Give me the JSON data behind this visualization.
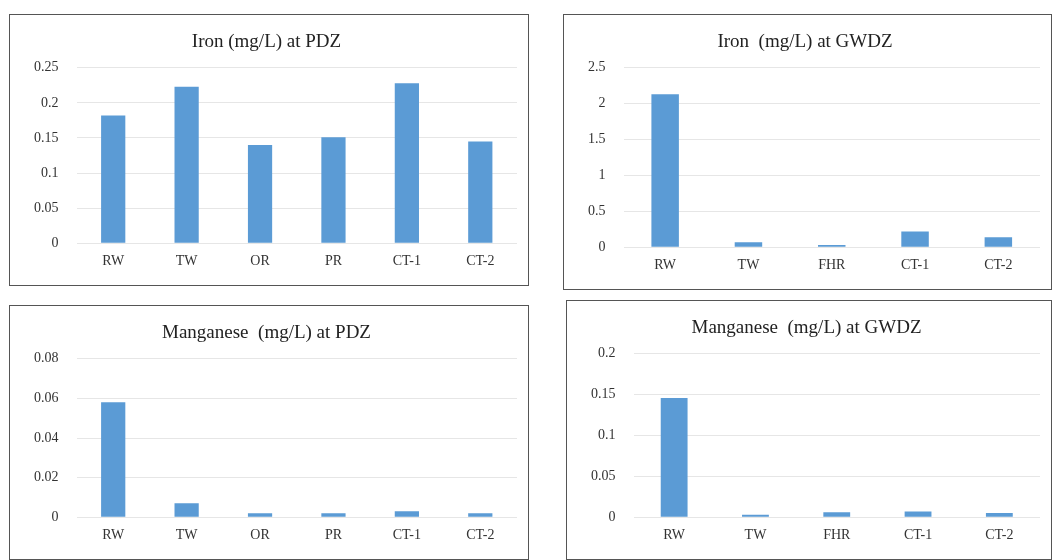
{
  "chart_data": [
    {
      "type": "bar",
      "title": "Iron (mg/L) at PDZ",
      "categories": [
        "RW",
        "TW",
        "OR",
        "PR",
        "CT-1",
        "CT-2"
      ],
      "values": [
        0.182,
        0.223,
        0.14,
        0.151,
        0.228,
        0.145
      ],
      "color": "#5b9bd5",
      "ylim": [
        0,
        0.25
      ],
      "yticks": [
        0,
        {
          "value": 0.05,
          "label": "0.05"
        },
        {
          "value": 0.1,
          "label": "0.1"
        },
        {
          "value": 0.15,
          "label": "0.15"
        },
        {
          "value": 0.2,
          "label": "0.2"
        },
        {
          "value": 0.25,
          "label": "0.25"
        }
      ],
      "grid": "y"
    },
    {
      "type": "bar",
      "title": "Iron  (mg/L) at GWDZ",
      "categories": [
        "RW",
        "TW",
        "FHR",
        "CT-1",
        "CT-2"
      ],
      "values": [
        2.13,
        0.07,
        0.03,
        0.22,
        0.14
      ],
      "color": "#5b9bd5",
      "ylim": [
        0,
        2.5
      ],
      "yticks": [
        0,
        0.5,
        1,
        1.5,
        2,
        2.5
      ],
      "grid": "y"
    },
    {
      "type": "bar",
      "title": "Manganese  (mg/L) at PDZ",
      "categories": [
        "RW",
        "TW",
        "OR",
        "PR",
        "CT-1",
        "CT-2"
      ],
      "values": [
        0.058,
        0.007,
        0.002,
        0.002,
        0.003,
        0.002
      ],
      "color": "#5b9bd5",
      "ylim": [
        0,
        0.08
      ],
      "yticks": [
        0,
        {
          "value": 0.02,
          "label": "0.02"
        },
        {
          "value": 0.04,
          "label": "0.04"
        },
        {
          "value": 0.06,
          "label": "0.06"
        },
        {
          "value": 0.08,
          "label": "0.08"
        }
      ],
      "grid": "y"
    },
    {
      "type": "bar",
      "title": "Manganese  (mg/L) at GWDZ",
      "categories": [
        "RW",
        "TW",
        "FHR",
        "CT-1",
        "CT-2"
      ],
      "values": [
        0.146,
        0.003,
        0.006,
        0.007,
        0.005
      ],
      "color": "#5b9bd5",
      "ylim": [
        0,
        0.2
      ],
      "yticks": [
        0,
        {
          "value": 0.05,
          "label": "0.05"
        },
        {
          "value": 0.1,
          "label": "0.1"
        },
        {
          "value": 0.15,
          "label": "0.15"
        },
        {
          "value": 0.2,
          "label": "0.2"
        }
      ],
      "grid": "y"
    }
  ]
}
